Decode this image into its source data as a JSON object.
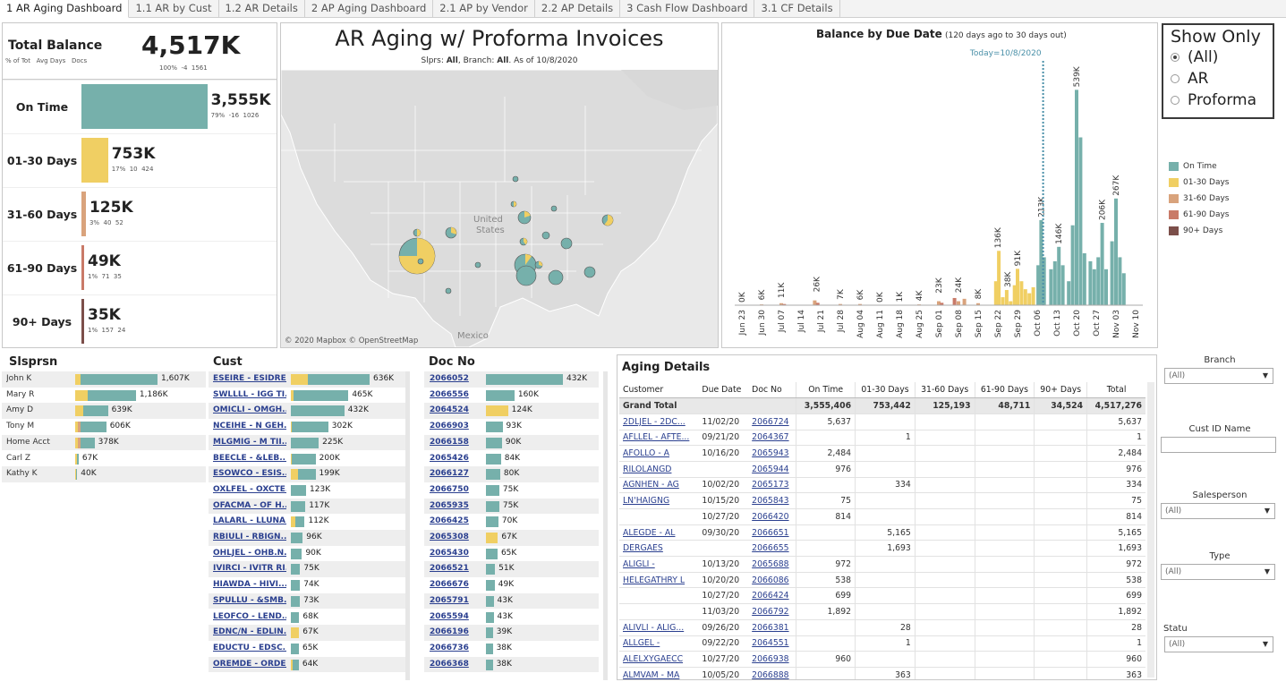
{
  "tabs": [
    "1 AR Aging Dashboard",
    "1.1 AR by Cust",
    "1.2 AR Details",
    "2 AP Aging Dashboard",
    "2.1 AP by Vendor",
    "2.2 AP Details",
    "3 Cash Flow Dashboard",
    "3.1 CF Details"
  ],
  "colors": {
    "on_time": "#76b0ab",
    "d01_30": "#f0cf63",
    "d31_60": "#d9a37c",
    "d61_90": "#c97a68",
    "d90": "#7c4f4a",
    "today": "#4a90a8"
  },
  "summary": {
    "title": "Total Balance",
    "sub_labels": "% of Tot   Avg Days   Docs",
    "total": "4,517K",
    "total_sub": "100%  -4  1561",
    "buckets": [
      {
        "label": "On Time",
        "value": "3,555K",
        "sub": "79%  -16  1026",
        "fraction": 0.79,
        "color": "#76b0ab"
      },
      {
        "label": "01-30 Days",
        "value": "753K",
        "sub": "17%  10  424",
        "fraction": 0.167,
        "color": "#f0cf63"
      },
      {
        "label": "31-60 Days",
        "value": "125K",
        "sub": "3%  40  52",
        "fraction": 0.028,
        "color": "#d9a37c"
      },
      {
        "label": "61-90 Days",
        "value": "49K",
        "sub": "1%  71  35",
        "fraction": 0.011,
        "color": "#c97a68"
      },
      {
        "label": "90+ Days",
        "value": "35K",
        "sub": "1%  157  24",
        "fraction": 0.008,
        "color": "#7c4f4a"
      }
    ]
  },
  "map": {
    "title": "AR Aging w/ Proforma Invoices",
    "subtitle_prefix": "Slprs: ",
    "slprs": "All",
    "branch_prefix": ", Branch: ",
    "branch": "All",
    "asof": ". As of 10/8/2020",
    "label_us": "United",
    "label_us2": "States",
    "label_mexico": "Mexico",
    "credit": "© 2020 Mapbox  © OpenStreetMap"
  },
  "chart_data": {
    "type": "bar",
    "title": "Balance by Due Date",
    "subtitle": "(120 days ago to 30 days out)",
    "today_label": "Today=10/8/2020",
    "x_ticks": [
      "Jun 23",
      "Jun 30",
      "Jul 07",
      "Jul 14",
      "Jul 21",
      "Jul 28",
      "Aug 04",
      "Aug 11",
      "Aug 18",
      "Aug 25",
      "Sep 01",
      "Sep 08",
      "Sep 15",
      "Sep 22",
      "Sep 29",
      "Oct 06",
      "Oct 13",
      "Oct 20",
      "Oct 27",
      "Nov 03",
      "Nov 10"
    ],
    "labels": [
      {
        "week": 0,
        "text": "0K",
        "value": 0
      },
      {
        "week": 1,
        "text": "6K",
        "value": 6
      },
      {
        "week": 2,
        "text": "11K",
        "value": 11
      },
      {
        "week": 3.8,
        "text": "26K",
        "value": 26
      },
      {
        "week": 5,
        "text": "7K",
        "value": 7
      },
      {
        "week": 6,
        "text": "6K",
        "value": 6
      },
      {
        "week": 7,
        "text": "0K",
        "value": 0
      },
      {
        "week": 8,
        "text": "1K",
        "value": 1
      },
      {
        "week": 9,
        "text": "4K",
        "value": 4
      },
      {
        "week": 10,
        "text": "23K",
        "value": 23
      },
      {
        "week": 11,
        "text": "24K",
        "value": 24
      },
      {
        "week": 12,
        "text": "8K",
        "value": 8
      },
      {
        "week": 13,
        "text": "136K",
        "value": 136
      },
      {
        "week": 13.5,
        "text": "38K",
        "value": 38
      },
      {
        "week": 14,
        "text": "91K",
        "value": 91
      },
      {
        "week": 15.2,
        "text": "213K",
        "value": 213
      },
      {
        "week": 16.1,
        "text": "146K",
        "value": 146
      },
      {
        "week": 17,
        "text": "539K",
        "value": 539
      },
      {
        "week": 18.3,
        "text": "206K",
        "value": 206
      },
      {
        "week": 19,
        "text": "267K",
        "value": 267
      }
    ],
    "bars": [
      {
        "w": 0.0,
        "v": 1,
        "c": "d31_60"
      },
      {
        "w": 1.0,
        "v": 2,
        "c": "d31_60"
      },
      {
        "w": 2.0,
        "v": 5,
        "c": "d31_60"
      },
      {
        "w": 2.15,
        "v": 3,
        "c": "d61_90"
      },
      {
        "w": 3.7,
        "v": 12,
        "c": "d31_60"
      },
      {
        "w": 3.85,
        "v": 6,
        "c": "d61_90"
      },
      {
        "w": 5.0,
        "v": 3,
        "c": "d31_60"
      },
      {
        "w": 6.0,
        "v": 3,
        "c": "d31_60"
      },
      {
        "w": 8.0,
        "v": 1,
        "c": "d31_60"
      },
      {
        "w": 9.0,
        "v": 2,
        "c": "d31_60"
      },
      {
        "w": 10.0,
        "v": 10,
        "c": "d31_60"
      },
      {
        "w": 10.15,
        "v": 6,
        "c": "d61_90"
      },
      {
        "w": 10.8,
        "v": 18,
        "c": "d61_90"
      },
      {
        "w": 11.0,
        "v": 10,
        "c": "d31_60"
      },
      {
        "w": 11.3,
        "v": 16,
        "c": "d31_60"
      },
      {
        "w": 12.0,
        "v": 5,
        "c": "d31_60"
      },
      {
        "w": 12.9,
        "v": 60,
        "c": "d01_30"
      },
      {
        "w": 13.05,
        "v": 136,
        "c": "d01_30"
      },
      {
        "w": 13.25,
        "v": 20,
        "c": "d01_30"
      },
      {
        "w": 13.45,
        "v": 38,
        "c": "d01_30"
      },
      {
        "w": 13.65,
        "v": 10,
        "c": "d01_30"
      },
      {
        "w": 13.85,
        "v": 50,
        "c": "d01_30"
      },
      {
        "w": 14.0,
        "v": 91,
        "c": "d01_30"
      },
      {
        "w": 14.2,
        "v": 60,
        "c": "d01_30"
      },
      {
        "w": 14.4,
        "v": 40,
        "c": "d01_30"
      },
      {
        "w": 14.6,
        "v": 30,
        "c": "d01_30"
      },
      {
        "w": 14.8,
        "v": 45,
        "c": "d01_30"
      },
      {
        "w": 15.05,
        "v": 100,
        "c": "on_time"
      },
      {
        "w": 15.2,
        "v": 213,
        "c": "on_time"
      },
      {
        "w": 15.35,
        "v": 120,
        "c": "on_time"
      },
      {
        "w": 15.7,
        "v": 90,
        "c": "on_time"
      },
      {
        "w": 15.9,
        "v": 110,
        "c": "on_time"
      },
      {
        "w": 16.1,
        "v": 146,
        "c": "on_time"
      },
      {
        "w": 16.3,
        "v": 100,
        "c": "on_time"
      },
      {
        "w": 16.6,
        "v": 60,
        "c": "on_time"
      },
      {
        "w": 16.8,
        "v": 200,
        "c": "on_time"
      },
      {
        "w": 17.0,
        "v": 539,
        "c": "on_time"
      },
      {
        "w": 17.2,
        "v": 420,
        "c": "on_time"
      },
      {
        "w": 17.4,
        "v": 130,
        "c": "on_time"
      },
      {
        "w": 17.7,
        "v": 110,
        "c": "on_time"
      },
      {
        "w": 17.9,
        "v": 90,
        "c": "on_time"
      },
      {
        "w": 18.1,
        "v": 120,
        "c": "on_time"
      },
      {
        "w": 18.3,
        "v": 206,
        "c": "on_time"
      },
      {
        "w": 18.5,
        "v": 90,
        "c": "on_time"
      },
      {
        "w": 18.8,
        "v": 160,
        "c": "on_time"
      },
      {
        "w": 19.0,
        "v": 267,
        "c": "on_time"
      },
      {
        "w": 19.2,
        "v": 120,
        "c": "on_time"
      },
      {
        "w": 19.4,
        "v": 80,
        "c": "on_time"
      }
    ],
    "y_max": 560,
    "today_week": 15.3
  },
  "show_only": {
    "title": "Show Only",
    "options": [
      "(All)",
      "AR",
      "Proforma"
    ],
    "selected": 0
  },
  "legend": [
    {
      "label": "On Time",
      "color": "#76b0ab"
    },
    {
      "label": "01-30 Days",
      "color": "#f0cf63"
    },
    {
      "label": "31-60 Days",
      "color": "#d9a37c"
    },
    {
      "label": "61-90 Days",
      "color": "#c97a68"
    },
    {
      "label": "90+ Days",
      "color": "#7c4f4a"
    }
  ],
  "slsprsn": {
    "title": "Slsprsn",
    "rows": [
      {
        "name": "John K",
        "value": "1,607K",
        "v": 1607,
        "parts": [
          0.07,
          0.93
        ]
      },
      {
        "name": "Mary R",
        "value": "1,186K",
        "v": 1186,
        "parts": [
          0.2,
          0.8
        ]
      },
      {
        "name": "Amy D",
        "value": "639K",
        "v": 639,
        "parts": [
          0.25,
          0.75
        ]
      },
      {
        "name": "Tony M",
        "value": "606K",
        "v": 606,
        "parts": [
          0.1,
          0.08,
          0.82
        ]
      },
      {
        "name": "Home Acct",
        "value": "378K",
        "v": 378,
        "parts": [
          0.15,
          0.15,
          0.7
        ]
      },
      {
        "name": "Carl Z",
        "value": "67K",
        "v": 67,
        "parts": [
          0.4,
          0.6
        ]
      },
      {
        "name": "Kathy K",
        "value": "40K",
        "v": 40,
        "parts": [
          0.5,
          0.5
        ]
      }
    ]
  },
  "cust": {
    "title": "Cust",
    "rows": [
      {
        "name": "ESEIRE - ESIDRE...",
        "value": "636K",
        "v": 636,
        "y": 0.22
      },
      {
        "name": "SWLLLL - IGG TI...",
        "value": "465K",
        "v": 465,
        "y": 0.05
      },
      {
        "name": "OMICLI - OMGH...",
        "value": "432K",
        "v": 432,
        "y": 0
      },
      {
        "name": "NCEIHE - N GEH...",
        "value": "302K",
        "v": 302,
        "y": 0.03
      },
      {
        "name": "MLGMIG - M TII...",
        "value": "225K",
        "v": 225,
        "y": 0
      },
      {
        "name": "BEECLE - &LEB...",
        "value": "200K",
        "v": 200,
        "y": 0.05
      },
      {
        "name": "ESOWCO - ESIS...",
        "value": "199K",
        "v": 199,
        "y": 0.3
      },
      {
        "name": "OXLFEL - OXCTE...",
        "value": "123K",
        "v": 123,
        "y": 0
      },
      {
        "name": "OFACMA - OF H...",
        "value": "117K",
        "v": 117,
        "y": 0
      },
      {
        "name": "LALARL - LLUNA...",
        "value": "112K",
        "v": 112,
        "y": 0.3
      },
      {
        "name": "RBIULI - RBIGN...",
        "value": "96K",
        "v": 96,
        "y": 0
      },
      {
        "name": "OHLJEL - OHB.N...",
        "value": "90K",
        "v": 90,
        "y": 0
      },
      {
        "name": "IVIRCI - IVITR RI...",
        "value": "75K",
        "v": 75,
        "y": 0
      },
      {
        "name": "HIAWDA - HIVI...",
        "value": "74K",
        "v": 74,
        "y": 0
      },
      {
        "name": "SPULLU - &SMB...",
        "value": "73K",
        "v": 73,
        "y": 0
      },
      {
        "name": "LEOFCO - LEND...",
        "value": "68K",
        "v": 68,
        "y": 0
      },
      {
        "name": "EDNC/N - EDLIN...",
        "value": "67K",
        "v": 67,
        "y": 1
      },
      {
        "name": "EDUCTU - EDSC...",
        "value": "65K",
        "v": 65,
        "y": 0
      },
      {
        "name": "OREMDE - ORDE...",
        "value": "64K",
        "v": 64,
        "y": 0.2
      }
    ]
  },
  "docno": {
    "title": "Doc No",
    "rows": [
      {
        "name": "2066052",
        "value": "432K",
        "v": 432,
        "y": 0
      },
      {
        "name": "2066556",
        "value": "160K",
        "v": 160,
        "y": 0
      },
      {
        "name": "2064524",
        "value": "124K",
        "v": 124,
        "y": 1
      },
      {
        "name": "2066903",
        "value": "93K",
        "v": 93,
        "y": 0
      },
      {
        "name": "2066158",
        "value": "90K",
        "v": 90,
        "y": 0
      },
      {
        "name": "2065426",
        "value": "84K",
        "v": 84,
        "y": 0
      },
      {
        "name": "2066127",
        "value": "80K",
        "v": 80,
        "y": 0
      },
      {
        "name": "2066750",
        "value": "75K",
        "v": 75,
        "y": 0
      },
      {
        "name": "2065935",
        "value": "75K",
        "v": 75,
        "y": 0
      },
      {
        "name": "2066425",
        "value": "70K",
        "v": 70,
        "y": 0
      },
      {
        "name": "2065308",
        "value": "67K",
        "v": 67,
        "y": 1
      },
      {
        "name": "2065430",
        "value": "65K",
        "v": 65,
        "y": 0
      },
      {
        "name": "2066521",
        "value": "51K",
        "v": 51,
        "y": 0
      },
      {
        "name": "2066676",
        "value": "49K",
        "v": 49,
        "y": 0
      },
      {
        "name": "2065791",
        "value": "43K",
        "v": 43,
        "y": 0
      },
      {
        "name": "2065594",
        "value": "43K",
        "v": 43,
        "y": 0
      },
      {
        "name": "2066196",
        "value": "39K",
        "v": 39,
        "y": 0
      },
      {
        "name": "2066736",
        "value": "38K",
        "v": 38,
        "y": 0
      },
      {
        "name": "2066368",
        "value": "38K",
        "v": 38,
        "y": 0
      }
    ]
  },
  "aging": {
    "title": "Aging Details",
    "headers": [
      "Customer",
      "Due Date",
      "Doc No",
      "On Time",
      "01-30 Days",
      "31-60 Days",
      "61-90 Days",
      "90+ Days",
      "Total"
    ],
    "grand": [
      "Grand Total",
      "",
      "",
      "3,555,406",
      "753,442",
      "125,193",
      "48,711",
      "34,524",
      "4,517,276"
    ],
    "rows": [
      [
        "2DLJEL - 2DC...",
        "11/02/20",
        "2066724",
        "5,637",
        "",
        "",
        "",
        "",
        "5,637"
      ],
      [
        "AFLLEL - AFTE...",
        "09/21/20",
        "2064367",
        "",
        "1",
        "",
        "",
        "",
        "1"
      ],
      [
        "AFOLLO - A",
        "10/16/20",
        "2065943",
        "2,484",
        "",
        "",
        "",
        "",
        "2,484"
      ],
      [
        "RILOLANGD",
        "",
        "2065944",
        "976",
        "",
        "",
        "",
        "",
        "976"
      ],
      [
        "AGNHEN - AG",
        "10/02/20",
        "2065173",
        "",
        "334",
        "",
        "",
        "",
        "334"
      ],
      [
        "LN'HAIGNG",
        "10/15/20",
        "2065843",
        "75",
        "",
        "",
        "",
        "",
        "75"
      ],
      [
        "",
        "10/27/20",
        "2066420",
        "814",
        "",
        "",
        "",
        "",
        "814"
      ],
      [
        "ALEGDE - AL",
        "09/30/20",
        "2066651",
        "",
        "5,165",
        "",
        "",
        "",
        "5,165"
      ],
      [
        "DERGAES",
        "",
        "2066655",
        "",
        "1,693",
        "",
        "",
        "",
        "1,693"
      ],
      [
        "ALIGLI -",
        "10/13/20",
        "2065688",
        "972",
        "",
        "",
        "",
        "",
        "972"
      ],
      [
        "HELEGATHRY L",
        "10/20/20",
        "2066086",
        "538",
        "",
        "",
        "",
        "",
        "538"
      ],
      [
        "",
        "10/27/20",
        "2066424",
        "699",
        "",
        "",
        "",
        "",
        "699"
      ],
      [
        "",
        "11/03/20",
        "2066792",
        "1,892",
        "",
        "",
        "",
        "",
        "1,892"
      ],
      [
        "ALIVLI - ALIG...",
        "09/26/20",
        "2066381",
        "",
        "28",
        "",
        "",
        "",
        "28"
      ],
      [
        "ALLGEL -",
        "09/22/20",
        "2064551",
        "",
        "1",
        "",
        "",
        "",
        "1"
      ],
      [
        "ALELXYGAECC",
        "10/27/20",
        "2066938",
        "960",
        "",
        "",
        "",
        "",
        "960"
      ],
      [
        "ALMVAM - MA",
        "10/05/20",
        "2066888",
        "",
        "363",
        "",
        "",
        "",
        "363"
      ]
    ]
  },
  "filters": {
    "branch_label": "Branch",
    "branch_value": "(All)",
    "cust_label": "Cust ID Name",
    "sales_label": "Salesperson",
    "sales_value": "(All)",
    "type_label": "Type",
    "type_value": "(All)",
    "statu_label": "Statu",
    "statu_value": "(All)"
  }
}
